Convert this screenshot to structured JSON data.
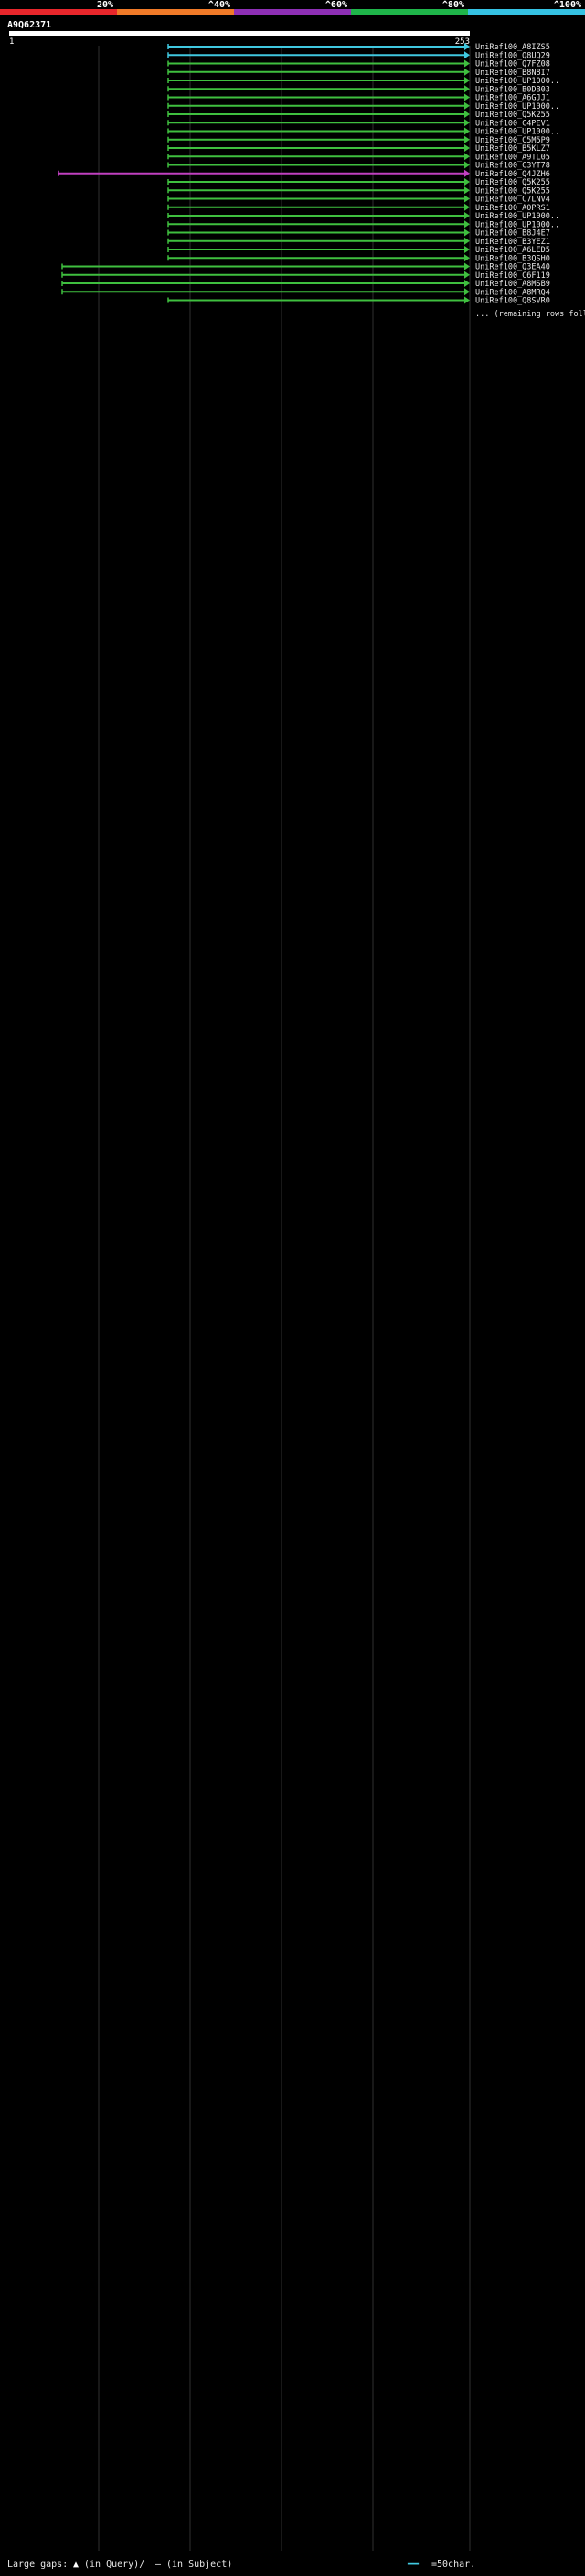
{
  "header": {
    "scale_labels": [
      "20%",
      "^40%",
      "^60%",
      "^80%",
      "^100%"
    ],
    "scale_colors": [
      "#e8262b",
      "#f07a28",
      "#8e2fb5",
      "#1fb54a",
      "#35c2e3"
    ],
    "query_name": "A9Q62371",
    "ruler_start": "1",
    "ruler_end": "253"
  },
  "colors": {
    "background": "#000000",
    "green": "#3fbf3f",
    "magenta": "#c040c0",
    "cyan": "#40c8e0",
    "gap_marker": "#ffffff",
    "grid": "#303030",
    "label": "#e8e8e8"
  },
  "chart_data": {
    "type": "alignment-bars",
    "title": "A9Q62371",
    "x_range": [
      1,
      253
    ],
    "color_legend": [
      {
        "label": "20%",
        "color": "#e8262b"
      },
      {
        "label": "^40%",
        "color": "#f07a28"
      },
      {
        "label": "^60%",
        "color": "#8e2fb5"
      },
      {
        "label": "^80%",
        "color": "#1fb54a"
      },
      {
        "label": "^100%",
        "color": "#35c2e3"
      }
    ],
    "rows": [
      {
        "label": "UniRef100_A8IZS5",
        "start": 88,
        "end": 253,
        "color": "cyan"
      },
      {
        "label": "UniRef100_Q8UQ29",
        "start": 88,
        "end": 253,
        "color": "cyan"
      },
      {
        "label": "UniRef100_Q7FZ08",
        "start": 88,
        "end": 253,
        "color": "green"
      },
      {
        "label": "UniRef100_B8N8I7",
        "start": 88,
        "end": 253,
        "color": "green"
      },
      {
        "label": "UniRef100_UP1000..",
        "start": 88,
        "end": 253,
        "color": "green"
      },
      {
        "label": "UniRef100_B0DB03",
        "start": 88,
        "end": 253,
        "color": "green"
      },
      {
        "label": "UniRef100_A6GJJ1",
        "start": 88,
        "end": 253,
        "color": "green"
      },
      {
        "label": "UniRef100_UP1000..",
        "start": 88,
        "end": 253,
        "color": "green"
      },
      {
        "label": "UniRef100_Q5K255",
        "start": 88,
        "end": 253,
        "color": "green"
      },
      {
        "label": "UniRef100_C4PEV1",
        "start": 88,
        "end": 253,
        "color": "green"
      },
      {
        "label": "UniRef100_UP1000..",
        "start": 88,
        "end": 253,
        "color": "green"
      },
      {
        "label": "UniRef100_C5M5P9",
        "start": 88,
        "end": 253,
        "color": "green"
      },
      {
        "label": "UniRef100_B5KLZ7",
        "start": 88,
        "end": 253,
        "color": "green"
      },
      {
        "label": "UniRef100_A9TL05",
        "start": 88,
        "end": 253,
        "color": "green"
      },
      {
        "label": "UniRef100_C3YT78",
        "start": 88,
        "end": 253,
        "color": "green"
      },
      {
        "label": "UniRef100_Q4JZH6",
        "start": 28,
        "end": 253,
        "color": "magenta"
      },
      {
        "label": "UniRef100_Q5K255",
        "start": 88,
        "end": 253,
        "color": "green"
      },
      {
        "label": "UniRef100_Q5K255",
        "start": 88,
        "end": 253,
        "color": "green"
      },
      {
        "label": "UniRef100_C7LNV4",
        "start": 88,
        "end": 253,
        "color": "green"
      },
      {
        "label": "UniRef100_A0PRS1",
        "start": 88,
        "end": 253,
        "color": "green"
      },
      {
        "label": "UniRef100_UP1000..",
        "start": 88,
        "end": 253,
        "color": "green"
      },
      {
        "label": "UniRef100_UP1000..",
        "start": 88,
        "end": 253,
        "color": "green"
      },
      {
        "label": "UniRef100_B8J4E7",
        "start": 88,
        "end": 253,
        "color": "green"
      },
      {
        "label": "UniRef100_B3YEZ1",
        "start": 88,
        "end": 253,
        "color": "green"
      },
      {
        "label": "UniRef100_A6LED5",
        "start": 88,
        "end": 253,
        "color": "green"
      },
      {
        "label": "UniRef100_B3QSH0",
        "start": 88,
        "end": 253,
        "color": "green"
      },
      {
        "label": "UniRef100_Q3EA40",
        "start": 30,
        "end": 253,
        "color": "green"
      },
      {
        "label": "UniRef100_C6F119",
        "start": 30,
        "end": 253,
        "color": "green"
      },
      {
        "label": "UniRef100_A8MSB9",
        "start": 30,
        "end": 253,
        "color": "green"
      },
      {
        "label": "UniRef100_A8MRQ4",
        "start": 30,
        "end": 253,
        "color": "green"
      },
      {
        "label": "UniRef100_Q8SVR0",
        "start": 88,
        "end": 253,
        "color": "green"
      }
    ],
    "row_label_ellipsis": "...",
    "more_rows_note": "... (remaining rows follow the same pattern)"
  },
  "legend": {
    "large_gaps_label": "Large gaps:",
    "in_query_label": "(in Query)/",
    "in_subject_label": "(in Subject)",
    "per_pixel_label": "=50char."
  }
}
